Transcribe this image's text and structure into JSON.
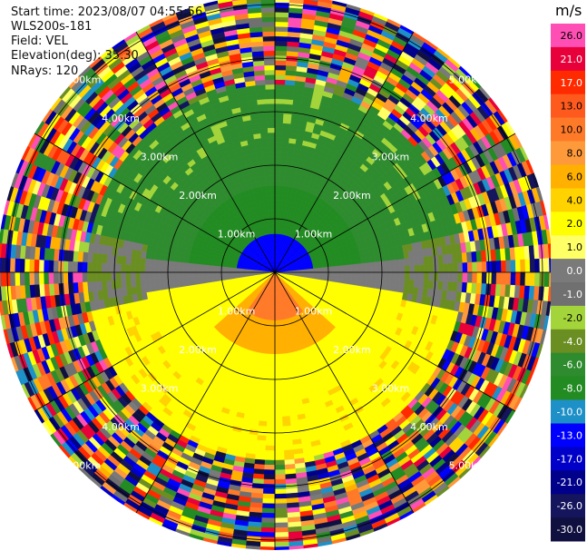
{
  "header": {
    "start_time": "Start time: 2023/08/07 04:55:56",
    "instrument": "WLS200s-181",
    "field": "Field: VEL",
    "elevation": "Elevation(deg): 35.30",
    "nrays": "NRays: 120"
  },
  "chart_data": {
    "type": "heatmap",
    "projection": "polar-ppi",
    "field": "VEL",
    "unit": "m/s",
    "range_rings_km": [
      1,
      2,
      3,
      4,
      5
    ],
    "ring_labels": [
      "1.00km",
      "2.00km",
      "3.00km",
      "4.00km",
      "5.00km"
    ],
    "max_range_km": 5.8,
    "spokes_deg": [
      0,
      30,
      60,
      90,
      120,
      150
    ],
    "colorbar": {
      "ticks": [
        "26.0",
        "21.0",
        "17.0",
        "13.0",
        "10.0",
        "8.0",
        "6.0",
        "4.0",
        "2.0",
        "1.0",
        "0.0",
        "-1.0",
        "-2.0",
        "-4.0",
        "-6.0",
        "-8.0",
        "-10.0",
        "-13.0",
        "-17.0",
        "-21.0",
        "-26.0",
        "-30.0"
      ],
      "colors": [
        "#ff4fb4",
        "#e8003a",
        "#ff2a00",
        "#ff5a1e",
        "#ff7a28",
        "#ff9a3a",
        "#ffb000",
        "#ffd200",
        "#ffff00",
        "#ffff66",
        "#7a7a7a",
        "#707070",
        "#a3d43a",
        "#6b8e23",
        "#2e8b2e",
        "#228b22",
        "#1e90c8",
        "#0000ff",
        "#0000c8",
        "#00008b",
        "#15155e",
        "#101040"
      ]
    },
    "regions": [
      {
        "name": "near-center-blue",
        "value": -10.0
      },
      {
        "name": "inner-green",
        "value": -6.0
      },
      {
        "name": "olive-north",
        "value": -4.0
      },
      {
        "name": "near-center-red",
        "value": 10.0
      },
      {
        "name": "orange-south",
        "value": 6.0
      },
      {
        "name": "yellow-south",
        "value": 2.0
      },
      {
        "name": "gray-zero-band",
        "value": 0.0
      }
    ]
  }
}
